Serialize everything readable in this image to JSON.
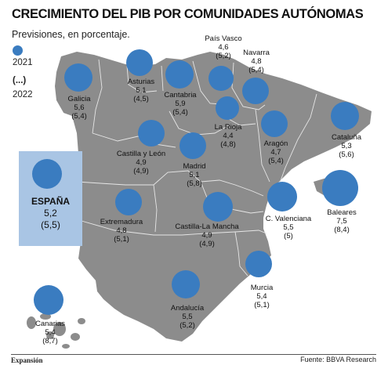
{
  "title": "CRECIMIENTO DEL PIB POR COMUNIDADES AUTÓNOMAS",
  "subtitle": "Previsiones, en porcentaje.",
  "legend": {
    "label_2021": "2021",
    "label_parens": "(...)",
    "label_2022": "2022",
    "dot_color": "#3a7cc0"
  },
  "colors": {
    "land": "#8c8c8c",
    "border": "#e6e6e6",
    "bubble": "#3a7cc0",
    "national_box": "#a9c5e4",
    "sea": "#ffffff"
  },
  "national": {
    "name": "ESPAÑA",
    "v2021": "5,2",
    "v2022": "(5,5)"
  },
  "regions": [
    {
      "name": "Galicia",
      "v2021": "5,6",
      "v2022": "(5,4)"
    },
    {
      "name": "Asturias",
      "v2021": "5,1",
      "v2022": "(4,5)"
    },
    {
      "name": "Cantabria",
      "v2021": "5,9",
      "v2022": "(5,4)"
    },
    {
      "name": "País Vasco",
      "v2021": "4,6",
      "v2022": "(5,2)"
    },
    {
      "name": "Navarra",
      "v2021": "4,8",
      "v2022": "(5,4)"
    },
    {
      "name": "La Rioja",
      "v2021": "4,4",
      "v2022": "(4,8)"
    },
    {
      "name": "Aragón",
      "v2021": "4,7",
      "v2022": "(5,4)"
    },
    {
      "name": "Cataluña",
      "v2021": "5,3",
      "v2022": "(5,6)"
    },
    {
      "name": "Castilla y León",
      "v2021": "4,9",
      "v2022": "(4,9)"
    },
    {
      "name": "Madrid",
      "v2021": "5,1",
      "v2022": "(5,8)"
    },
    {
      "name": "Extremadura",
      "v2021": "4,8",
      "v2022": "(5,1)"
    },
    {
      "name": "Castilla-La Mancha",
      "v2021": "4,9",
      "v2022": "(4,9)"
    },
    {
      "name": "C. Valenciana",
      "v2021": "5,5",
      "v2022": "(5)"
    },
    {
      "name": "Baleares",
      "v2021": "7,5",
      "v2022": "(8,4)"
    },
    {
      "name": "Murcia",
      "v2021": "5,4",
      "v2022": "(5,1)"
    },
    {
      "name": "Andalucía",
      "v2021": "5,5",
      "v2022": "(5,2)"
    },
    {
      "name": "Canarias",
      "v2021": "5,4",
      "v2022": "(8,7)"
    }
  ],
  "publisher": "Expansión",
  "source": "Fuente: BBVA Research"
}
